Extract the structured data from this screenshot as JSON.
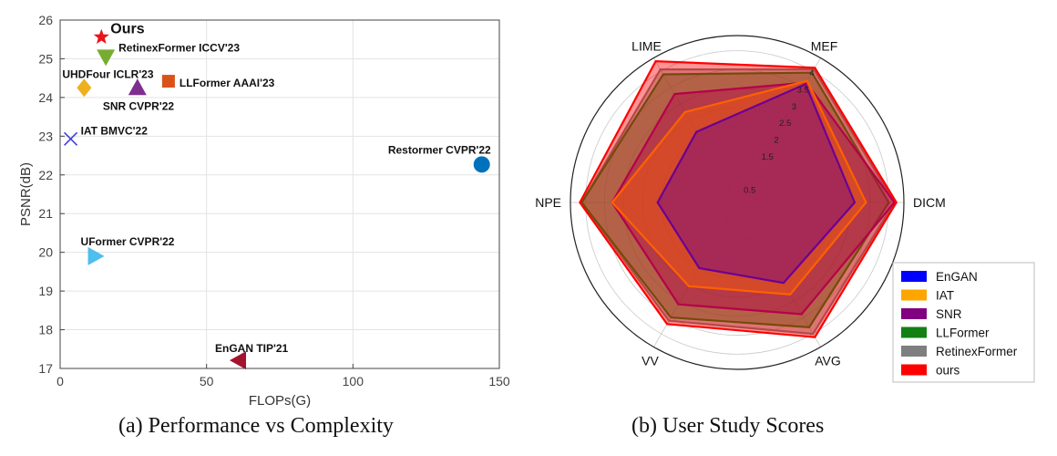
{
  "chart_data": [
    {
      "type": "scatter",
      "caption": "(a) Performance vs Complexity",
      "xlabel": "FLOPs(G)",
      "ylabel": "PSNR(dB)",
      "xlim": [
        0,
        150
      ],
      "ylim": [
        17,
        26
      ],
      "xticks": [
        "0",
        "50",
        "100",
        "150"
      ],
      "yticks": [
        "17",
        "18",
        "19",
        "20",
        "21",
        "22",
        "23",
        "24",
        "25",
        "26"
      ],
      "grid": true,
      "points": [
        {
          "label": "Ours",
          "x": 14.1,
          "y": 25.56,
          "marker": "star",
          "color": "#e8141c"
        },
        {
          "label": "RetinexFormer ICCV'23",
          "x": 15.6,
          "y": 25.05,
          "marker": "triangle-down",
          "color": "#77ac30"
        },
        {
          "label": "UHDFour ICLR'23",
          "x": 8.2,
          "y": 24.25,
          "marker": "diamond",
          "color": "#edb120"
        },
        {
          "label": "SNR CVPR'22",
          "x": 26.4,
          "y": 24.25,
          "marker": "triangle-up",
          "color": "#7e2f8e"
        },
        {
          "label": "LLFormer AAAI'23",
          "x": 37,
          "y": 24.42,
          "marker": "square",
          "color": "#d95319"
        },
        {
          "label": "IAT BMVC'22",
          "x": 3.6,
          "y": 22.93,
          "marker": "x",
          "color": "#4040d8"
        },
        {
          "label": "Restormer CVPR'22",
          "x": 144,
          "y": 22.27,
          "marker": "circle",
          "color": "#0072bd"
        },
        {
          "label": "UFormer CVPR'22",
          "x": 12,
          "y": 19.9,
          "marker": "triangle-right",
          "color": "#4dbeee"
        },
        {
          "label": "EnGAN TIP'21",
          "x": 61,
          "y": 17.21,
          "marker": "triangle-left",
          "color": "#a2142f"
        }
      ]
    },
    {
      "type": "radar",
      "caption": "(b) User Study Scores",
      "axes": [
        "DICM",
        "MEF",
        "LIME",
        "NPE",
        "VV",
        "AVG"
      ],
      "rmax": 4.4,
      "rings": [
        0.5,
        1,
        1.5,
        2,
        2.5,
        3,
        3.5,
        4
      ],
      "ring_labels": [
        "0.5",
        "1.5",
        "2",
        "2.5",
        "3",
        "3.5",
        "4"
      ],
      "legend_position": "bottom-right",
      "series": [
        {
          "name": "RetinexFormer",
          "color": "#7f7f7f",
          "values": [
            4.15,
            4.05,
            4.05,
            4.1,
            3.6,
            4.0
          ]
        },
        {
          "name": "LLFormer",
          "color": "#138013",
          "values": [
            4.0,
            3.95,
            3.9,
            4.1,
            3.5,
            3.8
          ]
        },
        {
          "name": "SNR",
          "color": "#800080",
          "values": [
            4.15,
            3.65,
            3.3,
            3.3,
            3.1,
            3.4
          ]
        },
        {
          "name": "IAT",
          "color": "#ffa500",
          "values": [
            3.4,
            3.7,
            2.75,
            3.3,
            2.55,
            2.8
          ]
        },
        {
          "name": "EnGAN",
          "color": "#0000ff",
          "values": [
            3.1,
            3.6,
            2.15,
            2.1,
            2.0,
            2.45
          ]
        },
        {
          "name": "ours",
          "color": "#ff0000",
          "values": [
            4.2,
            4.1,
            4.3,
            4.15,
            3.7,
            4.1
          ]
        }
      ],
      "legend_order": [
        "EnGAN",
        "IAT",
        "SNR",
        "LLFormer",
        "RetinexFormer",
        "ours"
      ]
    }
  ]
}
